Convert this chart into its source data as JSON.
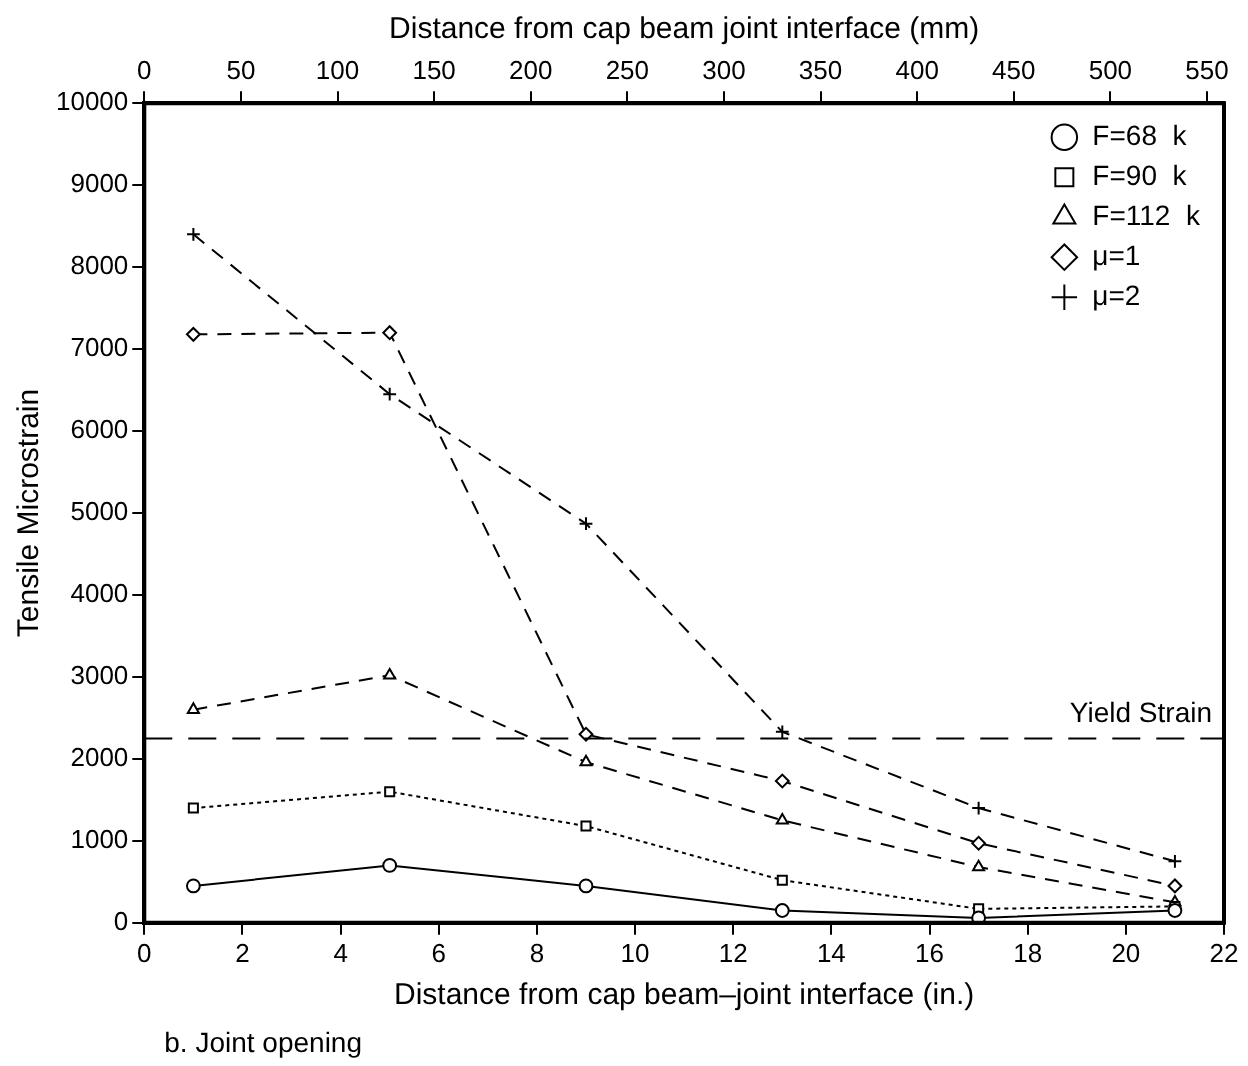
{
  "chart_data": {
    "type": "line",
    "xlabel": "Distance from cap beam–joint interface (in.)",
    "x2label": "Distance from cap beam joint interface (mm)",
    "ylabel": "Tensile Microstrain",
    "x": [
      1,
      5,
      9,
      13,
      17,
      21
    ],
    "series": [
      {
        "name": "F=68  k",
        "color": "#000000",
        "marker": "circle",
        "line_style": "solid",
        "values": [
          450,
          700,
          450,
          150,
          60,
          150
        ]
      },
      {
        "name": "F=90  k",
        "color": "#000000",
        "marker": "square",
        "line_style": "dotted",
        "values": [
          1400,
          1600,
          1180,
          520,
          170,
          200
        ]
      },
      {
        "name": "F=112  k",
        "color": "#000000",
        "marker": "triangle",
        "line_style": "dashed",
        "values": [
          2600,
          3020,
          1960,
          1250,
          680,
          250
        ]
      },
      {
        "name": "μ=1",
        "color": "#000000",
        "marker": "diamond",
        "line_style": "dashed",
        "values": [
          7180,
          7200,
          2300,
          1730,
          970,
          450
        ]
      },
      {
        "name": "μ=2",
        "color": "#000000",
        "marker": "cross",
        "line_style": "dashed",
        "values": [
          8400,
          6450,
          4870,
          2330,
          1400,
          750
        ]
      }
    ],
    "xlim": [
      0,
      22
    ],
    "xticks": [
      0,
      2,
      4,
      6,
      8,
      10,
      12,
      14,
      16,
      18,
      20,
      22
    ],
    "x2lim": [
      0,
      558.8
    ],
    "x2ticks": [
      0,
      50,
      100,
      150,
      200,
      250,
      300,
      350,
      400,
      450,
      500,
      550
    ],
    "ylim": [
      0,
      10000
    ],
    "yticks": [
      0,
      1000,
      2000,
      3000,
      4000,
      5000,
      6000,
      7000,
      8000,
      9000,
      10000
    ],
    "ref_lines": [
      {
        "axis": "y",
        "value": 2250,
        "label": "Yield Strain",
        "line_style": "dashed",
        "color": "#000000"
      }
    ],
    "annotations": [
      "b. Joint opening"
    ],
    "legend": "top right",
    "grid": false
  }
}
